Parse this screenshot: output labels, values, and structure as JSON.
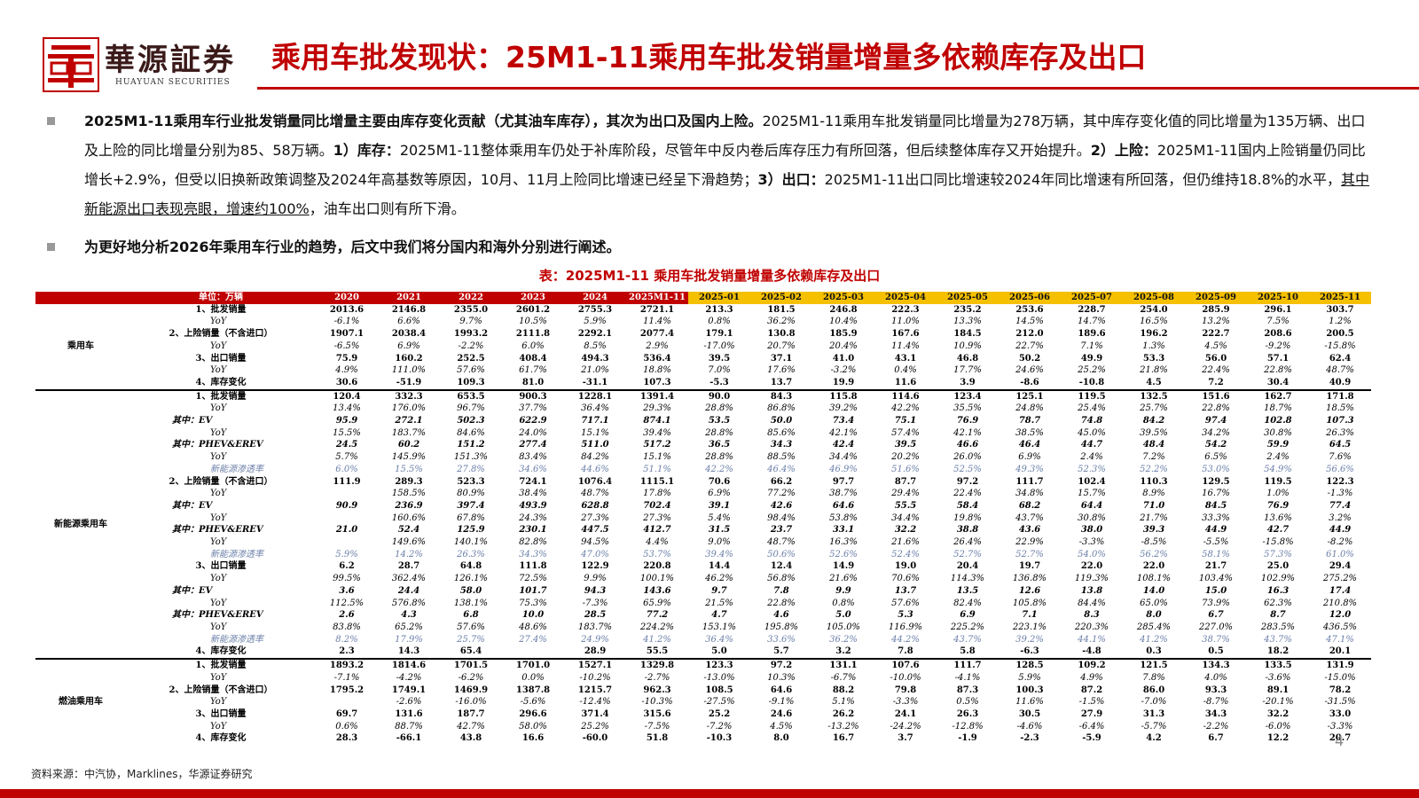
{
  "header": {
    "logo_text": "華源証券",
    "logo_sub": "HUAYUAN SECURITIES",
    "title": "乘用车批发现状：25M1-11乘用车批发销量增量多依赖库存及出口"
  },
  "bullets": [
    [
      {
        "text": "2025M1-11乘用车行业批发销量同比增量主要由库存变化贡献（尤其油车库存），其次为出口及国内上险。",
        "bold": true
      },
      {
        "text": "2025M1-11乘用车批发销量同比增量为278万辆，其中库存变化值的同比增量为135万辆、出口及上险的同比增量分别为85、58万辆。"
      },
      {
        "text": "1）库存：",
        "bold": true
      },
      {
        "text": "2025M1-11整体乘用车仍处于补库阶段，尽管年中反内卷后库存压力有所回落，但后续整体库存又开始提升。"
      },
      {
        "text": "2）上险：",
        "bold": true
      },
      {
        "text": "2025M1-11国内上险销量仍同比增长+2.9%，但受以旧换新政策调整及2024年高基数等原因，10月、11月上险同比增速已经呈下滑趋势；"
      },
      {
        "text": "3）出口：",
        "bold": true
      },
      {
        "text": "2025M1-11出口同比增速较2024年同比增速有所回落，但仍维持18.8%的水平，"
      },
      {
        "text": "其中新能源出口表现亮眼，增速约100%",
        "underline": true
      },
      {
        "text": "，油车出口则有所下滑。"
      }
    ],
    [
      {
        "text": "为更好地分析2026年乘用车行业的趋势，后文中我们将分国内和海外分别进行阐述。",
        "bold": true
      }
    ]
  ],
  "table": {
    "title": "表：2025M1-11 乘用车批发销量增量多依赖库存及出口",
    "unit": "单位：万辆",
    "columns": [
      "2020",
      "2021",
      "2022",
      "2023",
      "2024",
      "2025M1-11",
      "2025-01",
      "2025-02",
      "2025-03",
      "2025-04",
      "2025-05",
      "2025-06",
      "2025-07",
      "2025-08",
      "2025-09",
      "2025-10",
      "2025-11"
    ],
    "groups": [
      {
        "name": "乘用车",
        "rows": [
          {
            "label": "1、批发销量",
            "values": [
              "2013.6",
              "2146.8",
              "2355.0",
              "2601.2",
              "2755.3",
              "2721.1",
              "213.3",
              "181.5",
              "246.8",
              "222.3",
              "235.2",
              "253.6",
              "228.7",
              "254.0",
              "285.9",
              "296.1",
              "303.7"
            ]
          },
          {
            "label": "YoY",
            "values": [
              "-6.1%",
              "6.6%",
              "9.7%",
              "10.5%",
              "5.9%",
              "11.4%",
              "0.8%",
              "36.2%",
              "10.4%",
              "11.0%",
              "13.3%",
              "14.5%",
              "14.7%",
              "16.5%",
              "13.2%",
              "7.5%",
              "1.2%"
            ]
          },
          {
            "label": "2、上险销量（不含进口）",
            "values": [
              "1907.1",
              "2038.4",
              "1993.2",
              "2111.8",
              "2292.1",
              "2077.4",
              "179.1",
              "130.8",
              "185.9",
              "167.6",
              "184.5",
              "212.0",
              "189.6",
              "196.2",
              "222.7",
              "208.6",
              "200.5"
            ]
          },
          {
            "label": "YoY",
            "values": [
              "-6.5%",
              "6.9%",
              "-2.2%",
              "6.0%",
              "8.5%",
              "2.9%",
              "-17.0%",
              "20.7%",
              "20.4%",
              "11.4%",
              "10.9%",
              "22.7%",
              "7.1%",
              "1.3%",
              "4.5%",
              "-9.2%",
              "-15.8%"
            ]
          },
          {
            "label": "3、出口销量",
            "values": [
              "75.9",
              "160.2",
              "252.5",
              "408.4",
              "494.3",
              "536.4",
              "39.5",
              "37.1",
              "41.0",
              "43.1",
              "46.8",
              "50.2",
              "49.9",
              "53.3",
              "56.0",
              "57.1",
              "62.4"
            ]
          },
          {
            "label": "YoY",
            "values": [
              "4.9%",
              "111.0%",
              "57.6%",
              "61.7%",
              "21.0%",
              "18.8%",
              "7.0%",
              "17.6%",
              "-3.2%",
              "0.4%",
              "17.7%",
              "24.6%",
              "25.2%",
              "21.8%",
              "22.4%",
              "22.8%",
              "48.7%"
            ]
          },
          {
            "label": "4、库存变化",
            "values": [
              "30.6",
              "-51.9",
              "109.3",
              "81.0",
              "-31.1",
              "107.3",
              "-5.3",
              "13.7",
              "19.9",
              "11.6",
              "3.9",
              "-8.6",
              "-10.8",
              "4.5",
              "7.2",
              "30.4",
              "40.9"
            ]
          }
        ]
      },
      {
        "name": "新能源乘用车",
        "rows": [
          {
            "label": "1、批发销量",
            "values": [
              "120.4",
              "332.3",
              "653.5",
              "900.3",
              "1228.1",
              "1391.4",
              "90.0",
              "84.3",
              "115.8",
              "114.6",
              "123.4",
              "125.1",
              "119.5",
              "132.5",
              "151.6",
              "162.7",
              "171.8"
            ]
          },
          {
            "label": "YoY",
            "values": [
              "13.4%",
              "176.0%",
              "96.7%",
              "37.7%",
              "36.4%",
              "29.3%",
              "28.8%",
              "86.8%",
              "39.2%",
              "42.2%",
              "35.5%",
              "24.8%",
              "25.4%",
              "25.7%",
              "22.8%",
              "18.7%",
              "18.5%"
            ]
          },
          {
            "label": "其中：EV",
            "values": [
              "95.9",
              "272.1",
              "502.3",
              "622.9",
              "717.1",
              "874.1",
              "53.5",
              "50.0",
              "73.4",
              "75.1",
              "76.9",
              "78.7",
              "74.8",
              "84.2",
              "97.4",
              "102.8",
              "107.3"
            ]
          },
          {
            "label": "YoY",
            "values": [
              "15.5%",
              "183.7%",
              "84.6%",
              "24.0%",
              "15.1%",
              "39.4%",
              "28.8%",
              "85.6%",
              "42.1%",
              "57.4%",
              "42.1%",
              "38.5%",
              "45.0%",
              "39.5%",
              "34.2%",
              "30.8%",
              "26.3%"
            ]
          },
          {
            "label": "其中：PHEV&EREV",
            "values": [
              "24.5",
              "60.2",
              "151.2",
              "277.4",
              "511.0",
              "517.2",
              "36.5",
              "34.3",
              "42.4",
              "39.5",
              "46.6",
              "46.4",
              "44.7",
              "48.4",
              "54.2",
              "59.9",
              "64.5"
            ]
          },
          {
            "label": "YoY",
            "values": [
              "5.7%",
              "145.9%",
              "151.3%",
              "83.4%",
              "84.2%",
              "15.1%",
              "28.8%",
              "88.5%",
              "34.4%",
              "20.2%",
              "26.0%",
              "6.9%",
              "2.4%",
              "7.2%",
              "6.5%",
              "2.4%",
              "7.6%"
            ]
          },
          {
            "label": "新能源渗透率",
            "values": [
              "6.0%",
              "15.5%",
              "27.8%",
              "34.6%",
              "44.6%",
              "51.1%",
              "42.2%",
              "46.4%",
              "46.9%",
              "51.6%",
              "52.5%",
              "49.3%",
              "52.3%",
              "52.2%",
              "53.0%",
              "54.9%",
              "56.6%"
            ]
          },
          {
            "label": "2、上险销量（不含进口）",
            "values": [
              "111.9",
              "289.3",
              "523.3",
              "724.1",
              "1076.4",
              "1115.1",
              "70.6",
              "66.2",
              "97.7",
              "87.7",
              "97.2",
              "111.7",
              "102.4",
              "110.3",
              "129.5",
              "119.5",
              "122.3"
            ]
          },
          {
            "label": "YoY",
            "values": [
              null,
              "158.5%",
              "80.9%",
              "38.4%",
              "48.7%",
              "17.8%",
              "6.9%",
              "77.2%",
              "38.7%",
              "29.4%",
              "22.4%",
              "34.8%",
              "15.7%",
              "8.9%",
              "16.7%",
              "1.0%",
              "-1.3%"
            ]
          },
          {
            "label": "其中：EV",
            "values": [
              "90.9",
              "236.9",
              "397.4",
              "493.9",
              "628.8",
              "702.4",
              "39.1",
              "42.6",
              "64.6",
              "55.5",
              "58.4",
              "68.2",
              "64.4",
              "71.0",
              "84.5",
              "76.9",
              "77.4"
            ]
          },
          {
            "label": "YoY",
            "values": [
              null,
              "160.6%",
              "67.8%",
              "24.3%",
              "27.3%",
              "27.3%",
              "5.4%",
              "98.4%",
              "53.8%",
              "34.4%",
              "19.8%",
              "43.7%",
              "30.8%",
              "21.7%",
              "33.3%",
              "13.6%",
              "3.2%"
            ]
          },
          {
            "label": "其中：PHEV&EREV",
            "values": [
              "21.0",
              "52.4",
              "125.9",
              "230.1",
              "447.5",
              "412.7",
              "31.5",
              "23.7",
              "33.1",
              "32.2",
              "38.8",
              "43.6",
              "38.0",
              "39.3",
              "44.9",
              "42.7",
              "44.9"
            ]
          },
          {
            "label": "YoY",
            "values": [
              null,
              "149.6%",
              "140.1%",
              "82.8%",
              "94.5%",
              "4.4%",
              "9.0%",
              "48.7%",
              "16.3%",
              "21.6%",
              "26.4%",
              "22.9%",
              "-3.3%",
              "-8.5%",
              "-5.5%",
              "-15.8%",
              "-8.2%"
            ]
          },
          {
            "label": "新能源渗透率",
            "values": [
              "5.9%",
              "14.2%",
              "26.3%",
              "34.3%",
              "47.0%",
              "53.7%",
              "39.4%",
              "50.6%",
              "52.6%",
              "52.4%",
              "52.7%",
              "52.7%",
              "54.0%",
              "56.2%",
              "58.1%",
              "57.3%",
              "61.0%"
            ]
          },
          {
            "label": "3、出口销量",
            "values": [
              "6.2",
              "28.7",
              "64.8",
              "111.8",
              "122.9",
              "220.8",
              "14.4",
              "12.4",
              "14.9",
              "19.0",
              "20.4",
              "19.7",
              "22.0",
              "22.0",
              "21.7",
              "25.0",
              "29.4"
            ]
          },
          {
            "label": "YoY",
            "values": [
              "99.5%",
              "362.4%",
              "126.1%",
              "72.5%",
              "9.9%",
              "100.1%",
              "46.2%",
              "56.8%",
              "21.6%",
              "70.6%",
              "114.3%",
              "136.8%",
              "119.3%",
              "108.1%",
              "103.4%",
              "102.9%",
              "275.2%"
            ]
          },
          {
            "label": "其中：EV",
            "values": [
              "3.6",
              "24.4",
              "58.0",
              "101.7",
              "94.3",
              "143.6",
              "9.7",
              "7.8",
              "9.9",
              "13.7",
              "13.5",
              "12.6",
              "13.8",
              "14.0",
              "15.0",
              "16.3",
              "17.4"
            ]
          },
          {
            "label": "YoY",
            "values": [
              "112.5%",
              "576.8%",
              "138.1%",
              "75.3%",
              "-7.3%",
              "65.9%",
              "21.5%",
              "22.8%",
              "0.8%",
              "57.6%",
              "82.4%",
              "105.8%",
              "84.4%",
              "65.0%",
              "73.9%",
              "62.3%",
              "210.8%"
            ]
          },
          {
            "label": "其中：PHEV&EREV",
            "values": [
              "2.6",
              "4.3",
              "6.8",
              "10.0",
              "28.5",
              "77.2",
              "4.7",
              "4.6",
              "5.0",
              "5.3",
              "6.9",
              "7.1",
              "8.3",
              "8.0",
              "6.7",
              "8.7",
              "12.0"
            ]
          },
          {
            "label": "YoY",
            "values": [
              "83.8%",
              "65.2%",
              "57.6%",
              "48.6%",
              "183.7%",
              "224.2%",
              "153.1%",
              "195.8%",
              "105.0%",
              "116.9%",
              "225.2%",
              "223.1%",
              "220.3%",
              "285.4%",
              "227.0%",
              "283.5%",
              "436.5%"
            ]
          },
          {
            "label": "新能源渗透率",
            "values": [
              "8.2%",
              "17.9%",
              "25.7%",
              "27.4%",
              "24.9%",
              "41.2%",
              "36.4%",
              "33.6%",
              "36.2%",
              "44.2%",
              "43.7%",
              "39.2%",
              "44.1%",
              "41.2%",
              "38.7%",
              "43.7%",
              "47.1%"
            ]
          },
          {
            "label": "4、库存变化",
            "values": [
              "2.3",
              "14.3",
              "65.4",
              null,
              "28.9",
              "55.5",
              "5.0",
              "5.7",
              "3.2",
              "7.8",
              "5.8",
              "-6.3",
              "-4.8",
              "0.3",
              "0.5",
              "18.2",
              "20.1"
            ]
          }
        ]
      },
      {
        "name": "燃油乘用车",
        "rows": [
          {
            "label": "1、批发销量",
            "values": [
              "1893.2",
              "1814.6",
              "1701.5",
              "1701.0",
              "1527.1",
              "1329.8",
              "123.3",
              "97.2",
              "131.1",
              "107.6",
              "111.7",
              "128.5",
              "109.2",
              "121.5",
              "134.3",
              "133.5",
              "131.9"
            ]
          },
          {
            "label": "YoY",
            "values": [
              "-7.1%",
              "-4.2%",
              "-6.2%",
              "0.0%",
              "-10.2%",
              "-2.7%",
              "-13.0%",
              "10.3%",
              "-6.7%",
              "-10.0%",
              "-4.1%",
              "5.9%",
              "4.9%",
              "7.8%",
              "4.0%",
              "-3.6%",
              "-15.0%"
            ]
          },
          {
            "label": "2、上险销量（不含进口）",
            "values": [
              "1795.2",
              "1749.1",
              "1469.9",
              "1387.8",
              "1215.7",
              "962.3",
              "108.5",
              "64.6",
              "88.2",
              "79.8",
              "87.3",
              "100.3",
              "87.2",
              "86.0",
              "93.3",
              "89.1",
              "78.2"
            ]
          },
          {
            "label": "YoY",
            "values": [
              null,
              "-2.6%",
              "-16.0%",
              "-5.6%",
              "-12.4%",
              "-10.3%",
              "-27.5%",
              "-9.1%",
              "5.1%",
              "-3.3%",
              "0.5%",
              "11.6%",
              "-1.5%",
              "-7.0%",
              "-8.7%",
              "-20.1%",
              "-31.5%"
            ]
          },
          {
            "label": "3、出口销量",
            "values": [
              "69.7",
              "131.6",
              "187.7",
              "296.6",
              "371.4",
              "315.6",
              "25.2",
              "24.6",
              "26.2",
              "24.1",
              "26.3",
              "30.5",
              "27.9",
              "31.3",
              "34.3",
              "32.2",
              "33.0"
            ]
          },
          {
            "label": "YoY",
            "values": [
              "0.6%",
              "88.7%",
              "42.7%",
              "58.0%",
              "25.2%",
              "-7.5%",
              "-7.2%",
              "4.5%",
              "-13.2%",
              "-24.2%",
              "-12.8%",
              "-4.6%",
              "-6.4%",
              "-5.7%",
              "-2.2%",
              "-6.0%",
              "-3.3%"
            ]
          },
          {
            "label": "4、库存变化",
            "values": [
              "28.3",
              "-66.1",
              "43.8",
              "16.6",
              "-60.0",
              "51.8",
              "-10.3",
              "8.0",
              "16.7",
              "3.7",
              "-1.9",
              "-2.3",
              "-5.9",
              "4.2",
              "6.7",
              "12.2",
              "20.7"
            ]
          }
        ]
      }
    ]
  },
  "footer": {
    "source": "资料来源：中汽协，Marklines，华源证券研究",
    "page": "4"
  }
}
